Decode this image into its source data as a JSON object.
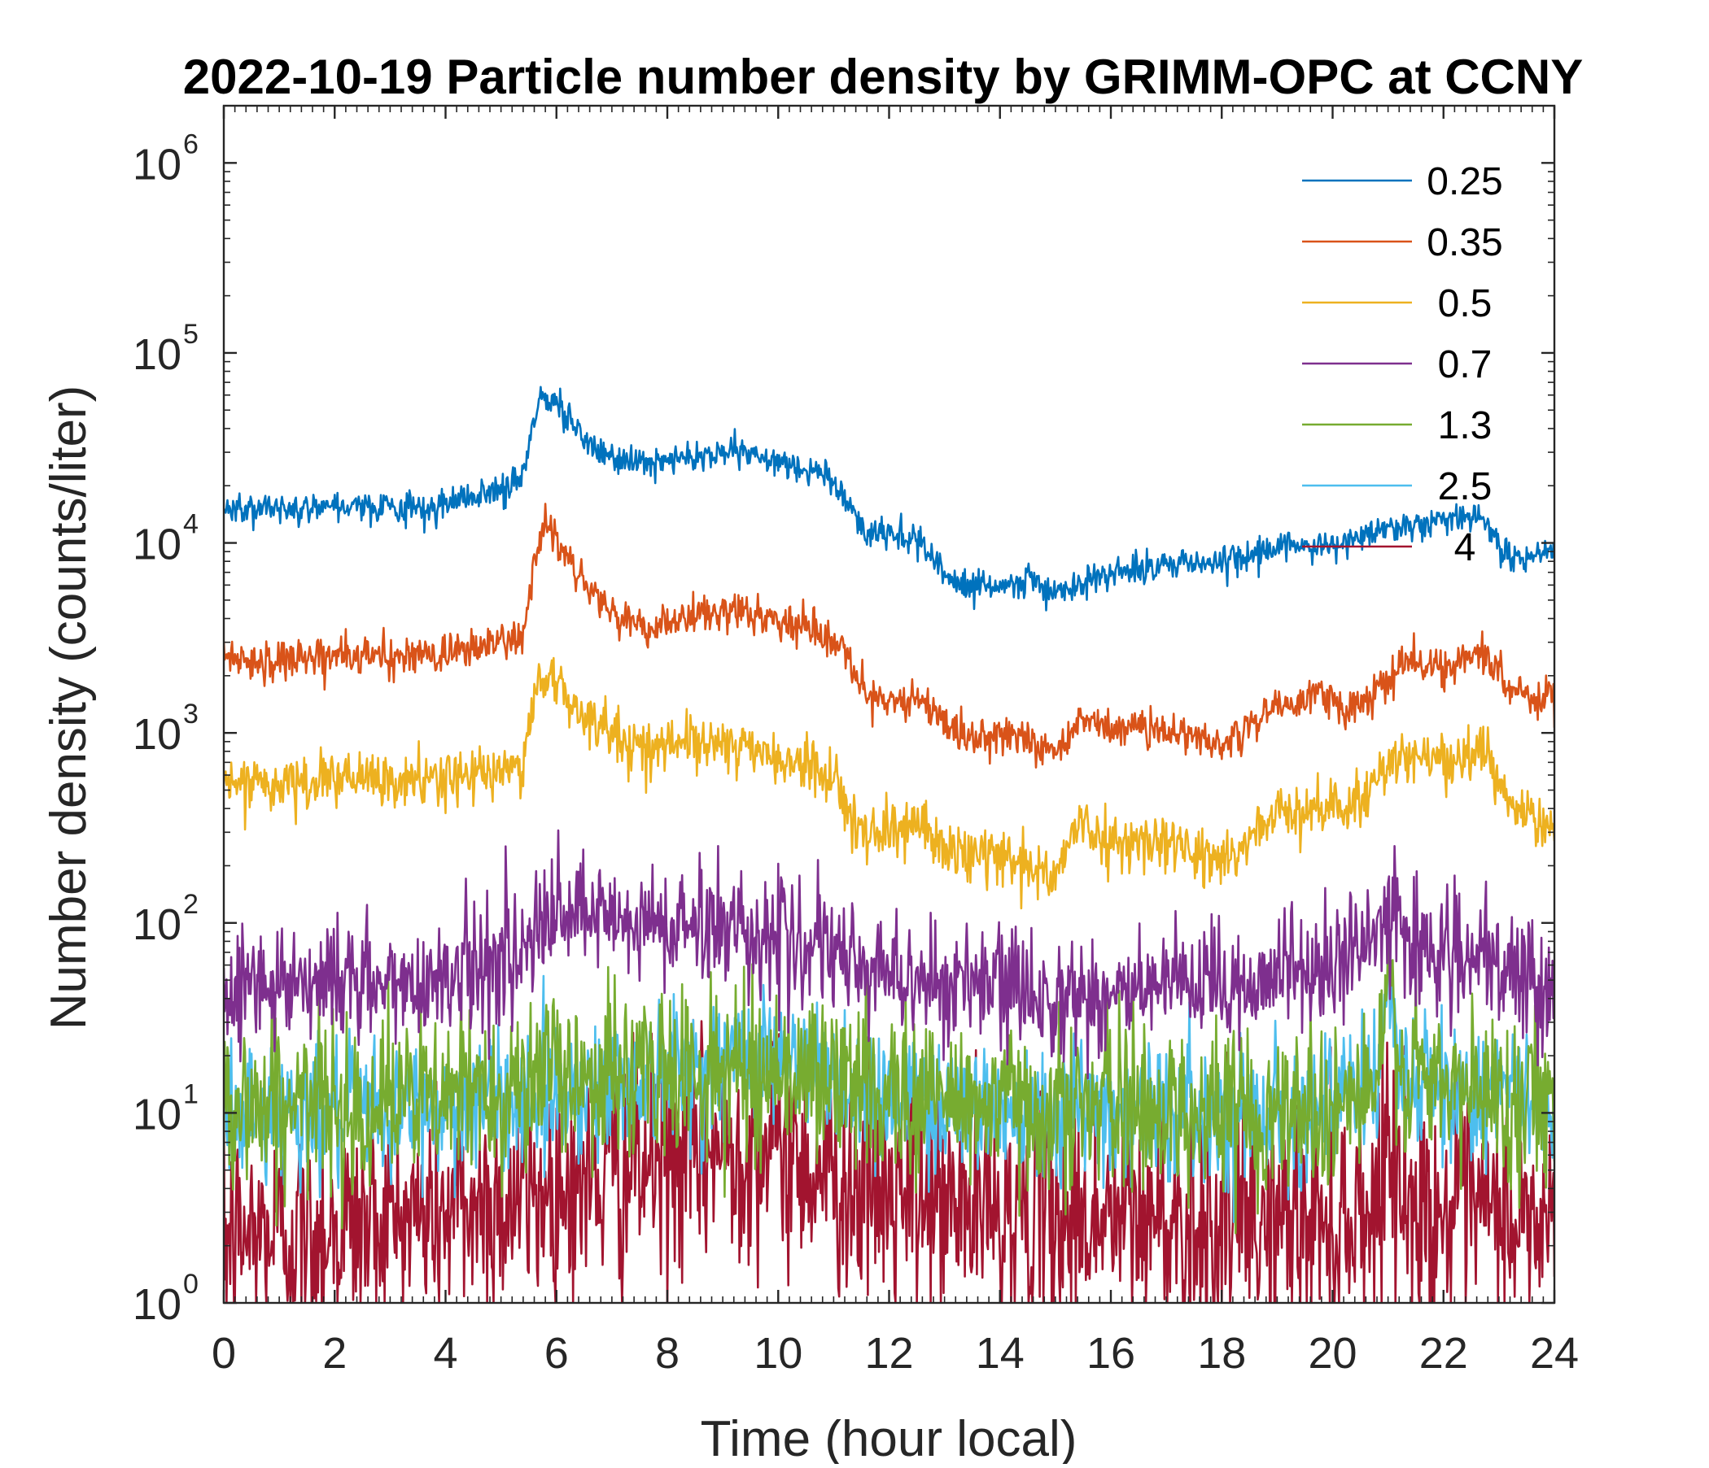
{
  "chart_data": {
    "type": "line",
    "title": "2022-10-19 Particle number density by GRIMM-OPC at CCNY",
    "xlabel": "Time (hour local)",
    "ylabel": "Number density (counts/liter)",
    "xlim": [
      0,
      24
    ],
    "ylim": [
      1,
      2000000
    ],
    "yscale": "log",
    "xticks": [
      "0",
      "2",
      "4",
      "6",
      "8",
      "10",
      "12",
      "14",
      "16",
      "18",
      "20",
      "22",
      "24"
    ],
    "yticks": [
      {
        "base": "10",
        "exp": "0"
      },
      {
        "base": "10",
        "exp": "1"
      },
      {
        "base": "10",
        "exp": "2"
      },
      {
        "base": "10",
        "exp": "3"
      },
      {
        "base": "10",
        "exp": "4"
      },
      {
        "base": "10",
        "exp": "5"
      },
      {
        "base": "10",
        "exp": "6"
      }
    ],
    "legend_position": "top-right",
    "series": [
      {
        "name": "0.25",
        "color": "#0072BD",
        "noise": 0.04,
        "points": [
          [
            0,
            15000
          ],
          [
            1,
            15500
          ],
          [
            2,
            16000
          ],
          [
            3,
            15500
          ],
          [
            3.6,
            14500
          ],
          [
            4,
            16500
          ],
          [
            5,
            19000
          ],
          [
            5.4,
            22000
          ],
          [
            5.55,
            40000
          ],
          [
            5.7,
            58000
          ],
          [
            6,
            55000
          ],
          [
            6.4,
            38000
          ],
          [
            7,
            27000
          ],
          [
            7.6,
            26000
          ],
          [
            8,
            27000
          ],
          [
            9,
            30000
          ],
          [
            10,
            27000
          ],
          [
            10.8,
            24000
          ],
          [
            11.2,
            17000
          ],
          [
            11.6,
            11000
          ],
          [
            12,
            11500
          ],
          [
            12.5,
            10500
          ],
          [
            13,
            6500
          ],
          [
            13.5,
            6000
          ],
          [
            14,
            5800
          ],
          [
            14.6,
            6200
          ],
          [
            15,
            5500
          ],
          [
            16,
            7000
          ],
          [
            17,
            8000
          ],
          [
            18,
            7800
          ],
          [
            19,
            9500
          ],
          [
            19.5,
            10000
          ],
          [
            20,
            9500
          ],
          [
            20.5,
            11000
          ],
          [
            21,
            12000
          ],
          [
            22,
            13000
          ],
          [
            22.7,
            14000
          ],
          [
            23.2,
            8000
          ],
          [
            24,
            9200
          ]
        ]
      },
      {
        "name": "0.35",
        "color": "#D95319",
        "noise": 0.05,
        "points": [
          [
            0,
            2500
          ],
          [
            1,
            2400
          ],
          [
            2,
            2600
          ],
          [
            3,
            2500
          ],
          [
            4,
            2600
          ],
          [
            5,
            3000
          ],
          [
            5.4,
            3200
          ],
          [
            5.6,
            8000
          ],
          [
            5.8,
            12500
          ],
          [
            6.1,
            9500
          ],
          [
            6.6,
            6000
          ],
          [
            7,
            4200
          ],
          [
            7.5,
            3500
          ],
          [
            8,
            3800
          ],
          [
            9,
            4300
          ],
          [
            10,
            4000
          ],
          [
            10.8,
            3300
          ],
          [
            11.2,
            2500
          ],
          [
            11.6,
            1500
          ],
          [
            12,
            1500
          ],
          [
            12.5,
            1550
          ],
          [
            13,
            1100
          ],
          [
            13.5,
            950
          ],
          [
            14,
            1000
          ],
          [
            14.6,
            900
          ],
          [
            15,
            800
          ],
          [
            15.5,
            1200
          ],
          [
            16,
            1050
          ],
          [
            17,
            1050
          ],
          [
            18,
            850
          ],
          [
            18.5,
            1100
          ],
          [
            19,
            1400
          ],
          [
            20,
            1600
          ],
          [
            20.2,
            1300
          ],
          [
            21,
            1800
          ],
          [
            21.3,
            2400
          ],
          [
            22,
            2200
          ],
          [
            22.8,
            2600
          ],
          [
            23.2,
            1700
          ],
          [
            24,
            1500
          ]
        ]
      },
      {
        "name": "0.5",
        "color": "#EDB120",
        "noise": 0.07,
        "points": [
          [
            0,
            550
          ],
          [
            1,
            520
          ],
          [
            2,
            580
          ],
          [
            3,
            540
          ],
          [
            4,
            580
          ],
          [
            5,
            620
          ],
          [
            5.4,
            700
          ],
          [
            5.6,
            1500
          ],
          [
            5.8,
            2100
          ],
          [
            6.2,
            1500
          ],
          [
            7,
            1000
          ],
          [
            7.5,
            830
          ],
          [
            8,
            880
          ],
          [
            9,
            900
          ],
          [
            10,
            730
          ],
          [
            10.8,
            600
          ],
          [
            11.2,
            470
          ],
          [
            11.6,
            290
          ],
          [
            12,
            300
          ],
          [
            12.5,
            340
          ],
          [
            13,
            240
          ],
          [
            14,
            230
          ],
          [
            14.6,
            200
          ],
          [
            15,
            170
          ],
          [
            15.4,
            330
          ],
          [
            16,
            270
          ],
          [
            17,
            270
          ],
          [
            18,
            210
          ],
          [
            18.5,
            270
          ],
          [
            19,
            380
          ],
          [
            20,
            420
          ],
          [
            20.3,
            380
          ],
          [
            21,
            700
          ],
          [
            21.3,
            800
          ],
          [
            22,
            700
          ],
          [
            22.8,
            780
          ],
          [
            23.2,
            400
          ],
          [
            24,
            320
          ]
        ]
      },
      {
        "name": "0.7",
        "color": "#7E2F8E",
        "noise": 0.16,
        "points": [
          [
            0,
            48
          ],
          [
            2,
            52
          ],
          [
            3,
            45
          ],
          [
            4,
            55
          ],
          [
            5,
            65
          ],
          [
            5.5,
            75
          ],
          [
            6,
            110
          ],
          [
            7,
            100
          ],
          [
            8,
            95
          ],
          [
            9,
            100
          ],
          [
            10,
            85
          ],
          [
            11,
            65
          ],
          [
            12,
            55
          ],
          [
            13,
            48
          ],
          [
            14,
            45
          ],
          [
            15,
            42
          ],
          [
            16,
            42
          ],
          [
            17,
            45
          ],
          [
            18,
            45
          ],
          [
            19,
            55
          ],
          [
            20,
            60
          ],
          [
            20.8,
            80
          ],
          [
            21,
            130
          ],
          [
            21.4,
            80
          ],
          [
            22,
            70
          ],
          [
            23,
            55
          ],
          [
            24,
            48
          ]
        ]
      },
      {
        "name": "1.3",
        "color": "#77AC30",
        "noise": 0.22,
        "points": [
          [
            0,
            11
          ],
          [
            2,
            11
          ],
          [
            4,
            12
          ],
          [
            6,
            16
          ],
          [
            8,
            16
          ],
          [
            10,
            17
          ],
          [
            12,
            13
          ],
          [
            14,
            11
          ],
          [
            16,
            11
          ],
          [
            18,
            10
          ],
          [
            20,
            11
          ],
          [
            20.8,
            13
          ],
          [
            21,
            45
          ],
          [
            21.3,
            15
          ],
          [
            22,
            13
          ],
          [
            24,
            12
          ]
        ]
      },
      {
        "name": "2.5",
        "color": "#4DBEEE",
        "noise": 0.18,
        "points": [
          [
            0,
            10
          ],
          [
            2,
            10
          ],
          [
            4,
            10.5
          ],
          [
            6,
            13
          ],
          [
            8,
            16
          ],
          [
            9.5,
            20
          ],
          [
            10,
            20
          ],
          [
            12,
            12
          ],
          [
            14,
            11
          ],
          [
            16,
            10.5
          ],
          [
            18,
            10
          ],
          [
            20,
            11
          ],
          [
            20.8,
            14
          ],
          [
            21,
            55
          ],
          [
            21.3,
            14
          ],
          [
            22,
            13
          ],
          [
            24,
            12
          ]
        ]
      },
      {
        "name": "4",
        "color": "#A2142F",
        "noise": 0.3,
        "points": [
          [
            0,
            2.2
          ],
          [
            2,
            2.5
          ],
          [
            4,
            3
          ],
          [
            6,
            4
          ],
          [
            8,
            5.5
          ],
          [
            9.5,
            7
          ],
          [
            10,
            6.5
          ],
          [
            12,
            3.5
          ],
          [
            14,
            3
          ],
          [
            16,
            2.8
          ],
          [
            18,
            2.6
          ],
          [
            20,
            2.8
          ],
          [
            20.8,
            3.2
          ],
          [
            21,
            9
          ],
          [
            21.3,
            3
          ],
          [
            22,
            3
          ],
          [
            24,
            2.5
          ]
        ]
      }
    ]
  }
}
